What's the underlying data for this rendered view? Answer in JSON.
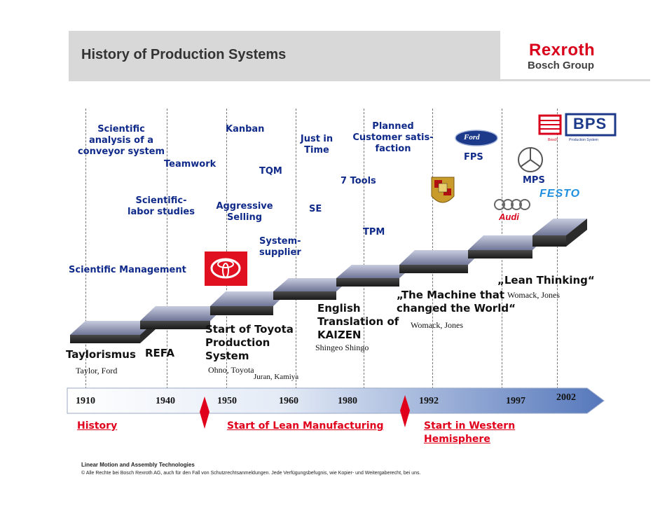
{
  "header": {
    "title": "History of Production Systems",
    "brand": "Rexroth",
    "brand_sub": "Bosch Group"
  },
  "methods": {
    "scientific_analysis": [
      "Scientific",
      "analysis of a",
      "conveyor system"
    ],
    "teamwork": "Teamwork",
    "scientific_labor": [
      "Scientific-",
      "labor studies"
    ],
    "scientific_management": "Scientific Management",
    "kanban": "Kanban",
    "aggressive_selling": [
      "Aggressive",
      "Selling"
    ],
    "tqm": "TQM",
    "system_supplier": [
      "System-",
      "supplier"
    ],
    "jit": [
      "Just in",
      "Time"
    ],
    "se": "SE",
    "planned": [
      "Planned",
      "Customer satis-",
      "faction"
    ],
    "seven_tools": "7 Tools",
    "tpm": "TPM",
    "fps": "FPS",
    "mps": "MPS"
  },
  "milestones": {
    "taylorismus": "Taylorismus",
    "taylor_ford": "Taylor, Ford",
    "refa": "REFA",
    "tps": [
      "Start of Toyota",
      "Production",
      "System"
    ],
    "ohno": "Ohno, Toyota",
    "juran": "Juran, Kamiya",
    "kaizen": [
      "English",
      "Translation of",
      "KAIZEN"
    ],
    "shingo": "Shingeo Shingo",
    "machine": [
      "„The Machine that",
      "changed the World“"
    ],
    "womack1": "Womack, Jones",
    "lean": "„Lean Thinking“",
    "womack2": "Womack, Jones"
  },
  "logos": {
    "ford": "Ford",
    "bps": "BPS",
    "bps_sub1": "Bosch",
    "bps_sub2": "Production System",
    "audi": "Audi",
    "festo": "FESTO"
  },
  "timeline": {
    "years": [
      "1910",
      "1940",
      "1950",
      "1960",
      "1980",
      "1992",
      "1997",
      "2002"
    ]
  },
  "phases": {
    "history": "History",
    "lean": "Start of Lean Manufacturing",
    "western": [
      "Start in Western",
      "Hemisphere"
    ]
  },
  "footer": {
    "line1": "Linear Motion and Assembly Technologies",
    "line2": "© Alle Rechte bei Bosch Rexroth AG, auch für den Fall von Schutzrechtsanmeldungen. Jede Verfügungsbefugnis, wie Kopier- und Weitergaberecht, bei uns."
  },
  "colors": {
    "brand_red": "#d9001b",
    "label_blue": "#102a8a",
    "step_top": "#8a92b8",
    "arrow_end": "#5b7fc4"
  }
}
